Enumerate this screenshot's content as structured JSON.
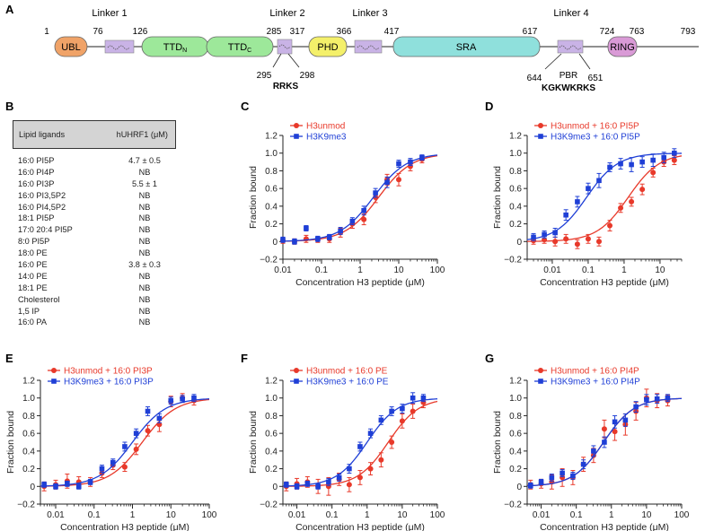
{
  "panel_labels": {
    "A": "A",
    "B": "B",
    "C": "C",
    "D": "D",
    "E": "E",
    "F": "F",
    "G": "G"
  },
  "domain_map": {
    "linker_labels": {
      "l1": "Linker 1",
      "l2": "Linker 2",
      "l3": "Linker 3",
      "l4": "Linker 4"
    },
    "domains": {
      "ubl": "UBL",
      "ttd_n": "TTD",
      "ttd_n_sub": "N",
      "ttd_c": "TTD",
      "ttd_c_sub": "C",
      "phd": "PHD",
      "sra": "SRA",
      "ring": "RING"
    },
    "positions": {
      "p1": "1",
      "p76": "76",
      "p126": "126",
      "p285": "285",
      "p317": "317",
      "p366": "366",
      "p417": "417",
      "p617": "617",
      "p724": "724",
      "p763": "763",
      "p793": "793",
      "p295": "295",
      "p298": "298",
      "p644": "644",
      "p651": "651"
    },
    "motifs": {
      "rrks": "RRKS",
      "pbr": "PBR",
      "kgkwkrks": "KGKWKRKS"
    },
    "colors": {
      "ubl": "#f0a368",
      "ttd": "#9de89a",
      "phd": "#f4f06a",
      "sra": "#8fe0dc",
      "ring": "#d99ad6",
      "linker_box": "#c9b3e6"
    }
  },
  "table": {
    "header": {
      "col1": "Lipid ligands",
      "col2": "hUHRF1 (μM)"
    },
    "rows": [
      {
        "ligand": "16:0 PI5P",
        "value": "4.7 ± 0.5"
      },
      {
        "ligand": "16:0 PI4P",
        "value": "NB"
      },
      {
        "ligand": "16:0 PI3P",
        "value": "5.5 ± 1"
      },
      {
        "ligand": "16:0 PI3,5P2",
        "value": "NB"
      },
      {
        "ligand": "16:0 PI4,5P2",
        "value": "NB"
      },
      {
        "ligand": "18:1 PI5P",
        "value": "NB"
      },
      {
        "ligand": "17:0 20:4 PI5P",
        "value": "NB"
      },
      {
        "ligand": "8:0 PI5P",
        "value": "NB"
      },
      {
        "ligand": "18:0 PE",
        "value": "NB"
      },
      {
        "ligand": "16:0 PE",
        "value": "3.8 ± 0.3"
      },
      {
        "ligand": "14:0 PE",
        "value": "NB"
      },
      {
        "ligand": "18:1 PE",
        "value": "NB"
      },
      {
        "ligand": "Cholesterol",
        "value": "NB"
      },
      {
        "ligand": "1,5 IP",
        "value": "NB"
      },
      {
        "ligand": "16:0 PA",
        "value": "NB"
      }
    ]
  },
  "series_colors": {
    "red": "#e8392a",
    "blue": "#1f3fd6"
  },
  "chart_data": [
    {
      "id": "C",
      "type": "scatter",
      "xlabel": "Concentration H3 peptide (μM)",
      "ylabel": "Fraction bound",
      "xscale": "log",
      "xlim": [
        0.01,
        100
      ],
      "ylim": [
        -0.2,
        1.2
      ],
      "xticks": [
        0.01,
        0.1,
        1,
        10,
        100
      ],
      "xtick_labels": [
        "0.01",
        "0.1",
        "1",
        "10",
        "100"
      ],
      "yticks": [
        -0.2,
        0,
        0.2,
        0.4,
        0.6,
        0.8,
        1.0,
        1.2
      ],
      "ytick_labels": [
        "−0.2",
        "0",
        "0.2",
        "0.4",
        "0.6",
        "0.8",
        "1.0",
        "1.2"
      ],
      "legend_position": "top-left",
      "series": [
        {
          "name": "H3unmod",
          "color": "red",
          "kd": 3.0,
          "x": [
            0.01,
            0.02,
            0.04,
            0.08,
            0.16,
            0.31,
            0.63,
            1.25,
            2.5,
            5,
            10,
            20,
            40
          ],
          "y": [
            0.01,
            0.0,
            0.03,
            0.02,
            0.03,
            0.1,
            0.2,
            0.25,
            0.5,
            0.7,
            0.7,
            0.85,
            0.93
          ],
          "err": [
            0.03,
            0.03,
            0.04,
            0.03,
            0.04,
            0.05,
            0.05,
            0.06,
            0.06,
            0.06,
            0.07,
            0.05,
            0.04
          ]
        },
        {
          "name": "H3K9me3",
          "color": "blue",
          "kd": 2.2,
          "x": [
            0.01,
            0.02,
            0.04,
            0.08,
            0.16,
            0.31,
            0.63,
            1.25,
            2.5,
            5,
            10,
            20,
            40
          ],
          "y": [
            0.02,
            0.0,
            0.15,
            0.03,
            0.05,
            0.12,
            0.23,
            0.35,
            0.55,
            0.67,
            0.88,
            0.9,
            0.95
          ],
          "err": [
            0.03,
            0.03,
            0.03,
            0.03,
            0.03,
            0.04,
            0.04,
            0.05,
            0.05,
            0.06,
            0.04,
            0.04,
            0.03
          ]
        }
      ]
    },
    {
      "id": "D",
      "type": "scatter",
      "xlabel": "Concentration H3 peptide (μM)",
      "ylabel": "Fraction bound",
      "xscale": "log",
      "xlim": [
        0.002,
        40
      ],
      "ylim": [
        -0.2,
        1.2
      ],
      "xticks": [
        0.01,
        0.1,
        1,
        10
      ],
      "xtick_labels": [
        "0.01",
        "0.1",
        "1",
        "10"
      ],
      "yticks": [
        -0.2,
        0,
        0.2,
        0.4,
        0.6,
        0.8,
        1.0,
        1.2
      ],
      "ytick_labels": [
        "−0.2",
        "0",
        "0.2",
        "0.4",
        "0.6",
        "0.8",
        "1.0",
        "1.2"
      ],
      "legend_position": "top-left",
      "series": [
        {
          "name": "H3unmod + 16:0 PI5P",
          "color": "red",
          "kd": 1.3,
          "x": [
            0.003,
            0.006,
            0.012,
            0.024,
            0.05,
            0.1,
            0.2,
            0.4,
            0.8,
            1.6,
            3.2,
            6.4,
            12.8,
            25
          ],
          "y": [
            0.01,
            0.02,
            0.0,
            0.03,
            -0.03,
            0.03,
            0.0,
            0.18,
            0.38,
            0.45,
            0.59,
            0.78,
            0.9,
            0.92
          ],
          "err": [
            0.04,
            0.04,
            0.05,
            0.05,
            0.05,
            0.05,
            0.05,
            0.06,
            0.05,
            0.05,
            0.06,
            0.05,
            0.05,
            0.05
          ]
        },
        {
          "name": "H3K9me3 + 16:0 PI5P",
          "color": "blue",
          "kd": 0.09,
          "x": [
            0.003,
            0.006,
            0.012,
            0.024,
            0.05,
            0.1,
            0.2,
            0.4,
            0.8,
            1.6,
            3.2,
            6.4,
            12.8,
            25
          ],
          "y": [
            0.05,
            0.08,
            0.1,
            0.3,
            0.45,
            0.6,
            0.69,
            0.84,
            0.88,
            0.87,
            0.9,
            0.92,
            0.95,
            1.0
          ],
          "err": [
            0.04,
            0.04,
            0.05,
            0.06,
            0.06,
            0.06,
            0.08,
            0.05,
            0.06,
            0.08,
            0.06,
            0.07,
            0.06,
            0.05
          ]
        }
      ]
    },
    {
      "id": "E",
      "type": "scatter",
      "xlabel": "Concentration H3 peptide (μM)",
      "ylabel": "Fraction bound",
      "xscale": "log",
      "xlim": [
        0.004,
        100
      ],
      "ylim": [
        -0.2,
        1.2
      ],
      "xticks": [
        0.01,
        0.1,
        1,
        10,
        100
      ],
      "xtick_labels": [
        "0.01",
        "0.1",
        "1",
        "10",
        "100"
      ],
      "yticks": [
        -0.2,
        0,
        0.2,
        0.4,
        0.6,
        0.8,
        1.0,
        1.2
      ],
      "ytick_labels": [
        "−0.2",
        "0",
        "0.2",
        "0.4",
        "0.6",
        "0.8",
        "1.0",
        "1.2"
      ],
      "legend_position": "top-left",
      "series": [
        {
          "name": "H3unmod + 16:0 PI3P",
          "color": "red",
          "kd": 1.8,
          "x": [
            0.005,
            0.01,
            0.02,
            0.04,
            0.08,
            0.16,
            0.31,
            0.63,
            1.25,
            2.5,
            5,
            10,
            20,
            40
          ],
          "y": [
            0.0,
            0.02,
            0.06,
            0.05,
            0.05,
            0.15,
            0.24,
            0.22,
            0.42,
            0.63,
            0.7,
            0.96,
            1.0,
            0.97
          ],
          "err": [
            0.05,
            0.05,
            0.08,
            0.06,
            0.05,
            0.05,
            0.05,
            0.05,
            0.06,
            0.06,
            0.08,
            0.06,
            0.05,
            0.05
          ]
        },
        {
          "name": "H3K9me3 + 16:0 PI3P",
          "color": "blue",
          "kd": 1.0,
          "x": [
            0.005,
            0.01,
            0.02,
            0.04,
            0.08,
            0.16,
            0.31,
            0.63,
            1.25,
            2.5,
            5,
            10,
            20,
            40
          ],
          "y": [
            0.02,
            0.0,
            0.03,
            0.0,
            0.05,
            0.2,
            0.27,
            0.45,
            0.6,
            0.85,
            0.77,
            0.97,
            0.99,
            1.0
          ],
          "err": [
            0.03,
            0.03,
            0.03,
            0.03,
            0.03,
            0.04,
            0.04,
            0.05,
            0.05,
            0.05,
            0.05,
            0.04,
            0.04,
            0.04
          ]
        }
      ]
    },
    {
      "id": "F",
      "type": "scatter",
      "xlabel": "Concentration H3 peptide (μM)",
      "ylabel": "Fraction bound",
      "xscale": "log",
      "xlim": [
        0.004,
        100
      ],
      "ylim": [
        -0.2,
        1.2
      ],
      "xticks": [
        0.01,
        0.1,
        1,
        10,
        100
      ],
      "xtick_labels": [
        "0.01",
        "0.1",
        "1",
        "10",
        "100"
      ],
      "yticks": [
        -0.2,
        0,
        0.2,
        0.4,
        0.6,
        0.8,
        1.0,
        1.2
      ],
      "ytick_labels": [
        "−0.2",
        "0",
        "0.2",
        "0.4",
        "0.6",
        "0.8",
        "1.0",
        "1.2"
      ],
      "legend_position": "top-left",
      "series": [
        {
          "name": "H3unmod + 16:0 PE",
          "color": "red",
          "kd": 4.0,
          "x": [
            0.005,
            0.01,
            0.02,
            0.04,
            0.08,
            0.16,
            0.31,
            0.63,
            1.25,
            2.5,
            5,
            10,
            20,
            40
          ],
          "y": [
            0.0,
            0.03,
            0.05,
            0.0,
            0.0,
            0.08,
            0.02,
            0.1,
            0.2,
            0.3,
            0.5,
            0.74,
            0.85,
            0.95
          ],
          "err": [
            0.05,
            0.06,
            0.06,
            0.08,
            0.1,
            0.07,
            0.08,
            0.08,
            0.07,
            0.08,
            0.07,
            0.08,
            0.08,
            0.06
          ]
        },
        {
          "name": "H3K9me3 + 16:0 PE",
          "color": "blue",
          "kd": 1.0,
          "x": [
            0.005,
            0.01,
            0.02,
            0.04,
            0.08,
            0.16,
            0.31,
            0.63,
            1.25,
            2.5,
            5,
            10,
            20,
            40
          ],
          "y": [
            0.02,
            0.0,
            0.03,
            0.0,
            0.05,
            0.1,
            0.2,
            0.45,
            0.6,
            0.75,
            0.85,
            0.88,
            1.0,
            1.0
          ],
          "err": [
            0.03,
            0.03,
            0.03,
            0.03,
            0.04,
            0.04,
            0.05,
            0.05,
            0.05,
            0.05,
            0.05,
            0.05,
            0.06,
            0.04
          ]
        }
      ]
    },
    {
      "id": "G",
      "type": "scatter",
      "xlabel": "Concentration H3 peptide (μM)",
      "ylabel": "Fraction bound",
      "xscale": "log",
      "xlim": [
        0.004,
        100
      ],
      "ylim": [
        -0.2,
        1.2
      ],
      "xticks": [
        0.01,
        0.1,
        1,
        10,
        100
      ],
      "xtick_labels": [
        "0.01",
        "0.1",
        "1",
        "10",
        "100"
      ],
      "yticks": [
        -0.2,
        0,
        0.2,
        0.4,
        0.6,
        0.8,
        1.0,
        1.2
      ],
      "ytick_labels": [
        "−0.2",
        "0",
        "0.2",
        "0.4",
        "0.6",
        "0.8",
        "1.0",
        "1.2"
      ],
      "legend_position": "top-left",
      "series": [
        {
          "name": "H3unmod + 16:0 PI4P",
          "color": "red",
          "kd": 0.6,
          "x": [
            0.005,
            0.01,
            0.02,
            0.04,
            0.08,
            0.16,
            0.31,
            0.63,
            1.25,
            2.5,
            5,
            10,
            20,
            40
          ],
          "y": [
            0.02,
            0.03,
            0.05,
            0.1,
            0.1,
            0.25,
            0.35,
            0.65,
            0.62,
            0.7,
            0.85,
            1.0,
            0.97,
            0.97
          ],
          "err": [
            0.05,
            0.05,
            0.08,
            0.1,
            0.08,
            0.08,
            0.08,
            0.1,
            0.1,
            0.12,
            0.1,
            0.1,
            0.08,
            0.06
          ]
        },
        {
          "name": "H3K9me3 + 16:0 PI4P",
          "color": "blue",
          "kd": 0.6,
          "x": [
            0.005,
            0.01,
            0.02,
            0.04,
            0.08,
            0.16,
            0.31,
            0.63,
            1.25,
            2.5,
            5,
            10,
            20,
            40
          ],
          "y": [
            0.01,
            0.05,
            0.1,
            0.15,
            0.12,
            0.25,
            0.4,
            0.5,
            0.73,
            0.75,
            0.9,
            0.98,
            0.99,
            1.0
          ],
          "err": [
            0.03,
            0.03,
            0.04,
            0.04,
            0.04,
            0.05,
            0.06,
            0.06,
            0.07,
            0.07,
            0.06,
            0.06,
            0.05,
            0.04
          ]
        }
      ]
    }
  ]
}
